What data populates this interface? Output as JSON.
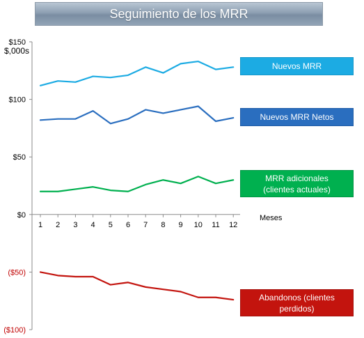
{
  "header": {
    "title": "Seguimiento de los MRR"
  },
  "chart_data": {
    "type": "line",
    "title": "Seguimiento de los MRR",
    "ylabel": "$,000s",
    "xlabel": "Meses",
    "categories": [
      "1",
      "2",
      "3",
      "4",
      "5",
      "6",
      "7",
      "8",
      "9",
      "10",
      "11",
      "12"
    ],
    "ylim": [
      -100,
      150
    ],
    "y_ticks": [
      {
        "value": 150,
        "label": "$150"
      },
      {
        "value": 100,
        "label": "$100"
      },
      {
        "value": 50,
        "label": "$50"
      },
      {
        "value": 0,
        "label": "$0"
      },
      {
        "value": -50,
        "label": "($50)"
      },
      {
        "value": -100,
        "label": "($100)"
      }
    ],
    "grid": false,
    "legend_position": "right",
    "series": [
      {
        "name": "Nuevos MRR",
        "color": "#1cabe3",
        "values": [
          112,
          116,
          115,
          120,
          119,
          121,
          128,
          123,
          131,
          133,
          126,
          128
        ]
      },
      {
        "name": "Nuevos MRR Netos",
        "color": "#2a6ebf",
        "values": [
          82,
          83,
          83,
          90,
          79,
          83,
          91,
          88,
          91,
          94,
          81,
          84
        ]
      },
      {
        "name": "MRR adicionales\n(clientes actuales)",
        "color": "#00b04f",
        "values": [
          20,
          20,
          22,
          24,
          21,
          20,
          26,
          30,
          27,
          33,
          27,
          30
        ]
      },
      {
        "name": "Abandonos (clientes\nperdidos)",
        "color": "#c3140e",
        "values": [
          -50,
          -53,
          -54,
          -54,
          -61,
          -59,
          -63,
          -65,
          -67,
          -72,
          -72,
          -74
        ]
      }
    ]
  }
}
